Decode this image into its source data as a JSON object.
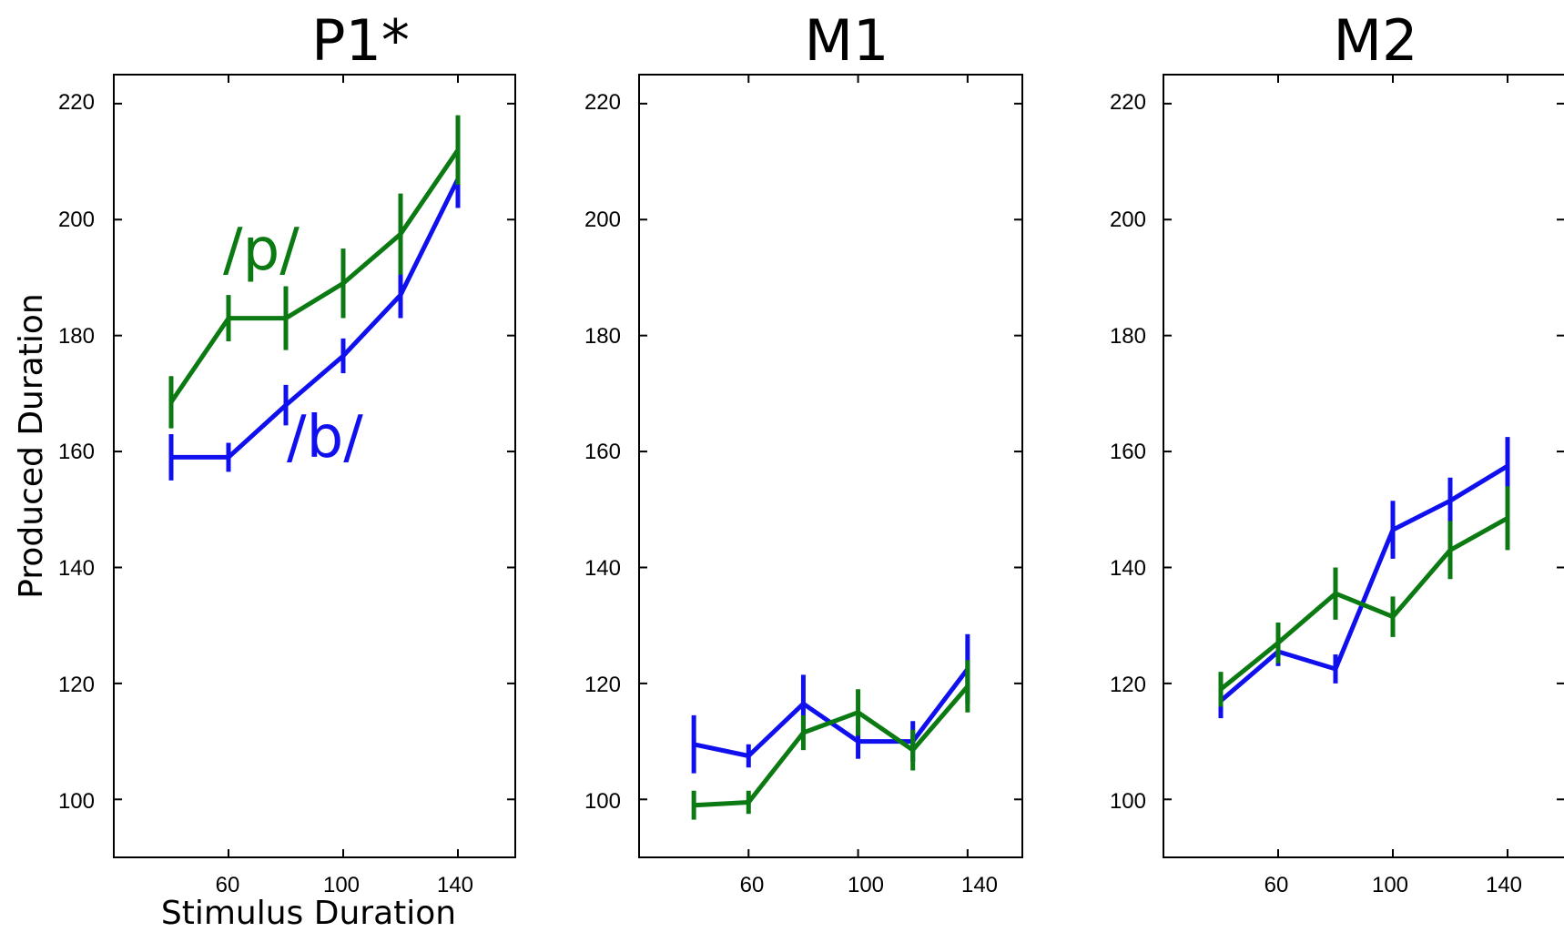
{
  "chart_data": [
    {
      "type": "line",
      "title": "P1*",
      "xlabel": "Stimulus Duration",
      "ylabel": "Produced Duration",
      "xlim": [
        20,
        160
      ],
      "ylim": [
        90,
        225
      ],
      "xticks": [
        60,
        100,
        140
      ],
      "yticks": [
        100,
        120,
        140,
        160,
        180,
        200,
        220
      ],
      "annotations": [
        {
          "text": "/p/",
          "series": 1
        },
        {
          "text": "/b/",
          "series": 0
        }
      ],
      "series": [
        {
          "color": "#1010ee",
          "x": [
            40,
            60,
            80,
            100,
            120,
            140
          ],
          "y": [
            159,
            159,
            168,
            176.5,
            187,
            207
          ],
          "err": [
            4,
            2.5,
            3.5,
            3,
            4,
            5
          ]
        },
        {
          "color": "#0b7a12",
          "x": [
            40,
            60,
            80,
            100,
            120,
            140
          ],
          "y": [
            168.5,
            183,
            183,
            189,
            197.5,
            212
          ],
          "err": [
            4.5,
            4,
            5.5,
            6,
            7,
            6
          ]
        }
      ]
    },
    {
      "type": "line",
      "title": "M1",
      "xlabel": "",
      "ylabel": "",
      "xlim": [
        20,
        160
      ],
      "ylim": [
        90,
        225
      ],
      "xticks": [
        60,
        100,
        140
      ],
      "yticks": [
        100,
        120,
        140,
        160,
        180,
        200,
        220
      ],
      "series": [
        {
          "color": "#1010ee",
          "x": [
            40,
            60,
            80,
            100,
            120,
            140
          ],
          "y": [
            109.5,
            107.5,
            116.5,
            110,
            110,
            122.5
          ],
          "err": [
            5,
            2,
            5,
            3,
            3.5,
            6
          ]
        },
        {
          "color": "#0b7a12",
          "x": [
            40,
            60,
            80,
            100,
            120,
            140
          ],
          "y": [
            99,
            99.5,
            111.5,
            115,
            108.5,
            119.5
          ],
          "err": [
            2.5,
            2,
            3,
            4,
            3.5,
            4.5
          ]
        }
      ]
    },
    {
      "type": "line",
      "title": "M2",
      "xlabel": "",
      "ylabel": "",
      "xlim": [
        20,
        160
      ],
      "ylim": [
        90,
        225
      ],
      "xticks": [
        60,
        100,
        140
      ],
      "yticks": [
        100,
        120,
        140,
        160,
        180,
        200,
        220
      ],
      "series": [
        {
          "color": "#1010ee",
          "x": [
            40,
            60,
            80,
            100,
            120,
            140
          ],
          "y": [
            117,
            125.5,
            122.5,
            146.5,
            151.5,
            157.5
          ],
          "err": [
            3,
            2.5,
            2.5,
            5,
            4,
            5
          ]
        },
        {
          "color": "#0b7a12",
          "x": [
            40,
            60,
            80,
            100,
            120,
            140
          ],
          "y": [
            119,
            127,
            135.5,
            131.5,
            143,
            148.5
          ],
          "err": [
            3,
            3.5,
            4.5,
            3.5,
            5,
            5.5
          ]
        }
      ]
    }
  ]
}
